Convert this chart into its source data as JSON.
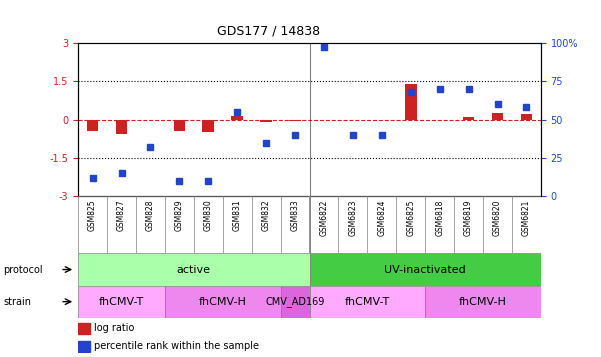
{
  "title": "GDS177 / 14838",
  "samples": [
    "GSM825",
    "GSM827",
    "GSM828",
    "GSM829",
    "GSM830",
    "GSM831",
    "GSM832",
    "GSM833",
    "GSM6822",
    "GSM6823",
    "GSM6824",
    "GSM6825",
    "GSM6818",
    "GSM6819",
    "GSM6820",
    "GSM6821"
  ],
  "log_ratio": [
    -0.45,
    -0.55,
    0.0,
    -0.45,
    -0.5,
    0.15,
    -0.1,
    -0.05,
    -0.02,
    -0.02,
    -0.02,
    1.4,
    0.0,
    0.1,
    0.25,
    0.2
  ],
  "percentile": [
    12,
    15,
    32,
    10,
    10,
    55,
    35,
    40,
    97,
    40,
    40,
    68,
    70,
    70,
    60,
    58
  ],
  "ylim": [
    -3,
    3
  ],
  "y2lim": [
    0,
    100
  ],
  "dotted_lines": [
    1.5,
    -1.5
  ],
  "zero_line": 0,
  "bar_color": "#cc2222",
  "dot_color": "#2244cc",
  "background_color": "#ffffff",
  "protocol_groups": [
    {
      "label": "active",
      "start": 0,
      "end": 8,
      "color": "#aaffaa"
    },
    {
      "label": "UV-inactivated",
      "start": 8,
      "end": 16,
      "color": "#44cc44"
    }
  ],
  "strain_groups": [
    {
      "label": "fhCMV-T",
      "start": 0,
      "end": 3,
      "color": "#ffaaff"
    },
    {
      "label": "fhCMV-H",
      "start": 3,
      "end": 7,
      "color": "#ee88ee"
    },
    {
      "label": "CMV_AD169",
      "start": 7,
      "end": 8,
      "color": "#dd66dd"
    },
    {
      "label": "fhCMV-T",
      "start": 8,
      "end": 12,
      "color": "#ffaaff"
    },
    {
      "label": "fhCMV-H",
      "start": 12,
      "end": 16,
      "color": "#ee88ee"
    }
  ],
  "legend_items": [
    {
      "label": "log ratio",
      "color": "#cc2222"
    },
    {
      "label": "percentile rank within the sample",
      "color": "#2244cc"
    }
  ]
}
